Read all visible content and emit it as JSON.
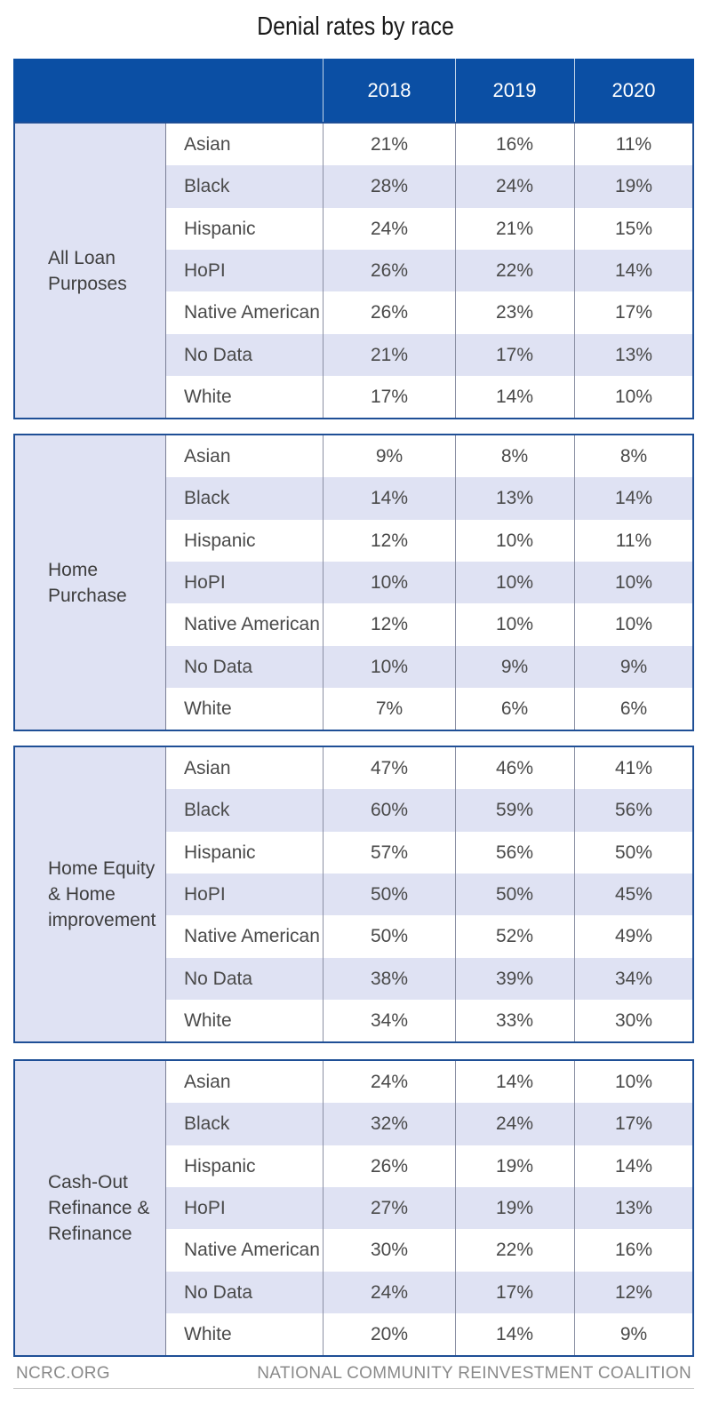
{
  "title": "Denial rates by race",
  "footer": {
    "left": "NCRC.ORG",
    "right": "NATIONAL COMMUNITY REINVESTMENT COALITION"
  },
  "colors": {
    "header": "#0b4fa4",
    "border": "#1f4f96",
    "band": "#dfe2f3"
  },
  "chart_data": {
    "type": "table",
    "title": "Denial rates by race",
    "columns": [
      "2018",
      "2019",
      "2020"
    ],
    "groups": [
      {
        "label": "All  Loan\nPurposes",
        "rows": [
          {
            "race": "Asian",
            "values": [
              "21%",
              "16%",
              "11%"
            ]
          },
          {
            "race": "Black",
            "values": [
              "28%",
              "24%",
              "19%"
            ]
          },
          {
            "race": "Hispanic",
            "values": [
              "24%",
              "21%",
              "15%"
            ]
          },
          {
            "race": "HoPI",
            "values": [
              "26%",
              "22%",
              "14%"
            ]
          },
          {
            "race": "Native American",
            "values": [
              "26%",
              "23%",
              "17%"
            ]
          },
          {
            "race": "No Data",
            "values": [
              "21%",
              "17%",
              "13%"
            ]
          },
          {
            "race": "White",
            "values": [
              "17%",
              "14%",
              "10%"
            ]
          }
        ]
      },
      {
        "label": "Home\nPurchase",
        "rows": [
          {
            "race": "Asian",
            "values": [
              "9%",
              "8%",
              "8%"
            ]
          },
          {
            "race": "Black",
            "values": [
              "14%",
              "13%",
              "14%"
            ]
          },
          {
            "race": "Hispanic",
            "values": [
              "12%",
              "10%",
              "11%"
            ]
          },
          {
            "race": "HoPI",
            "values": [
              "10%",
              "10%",
              "10%"
            ]
          },
          {
            "race": "Native American",
            "values": [
              "12%",
              "10%",
              "10%"
            ]
          },
          {
            "race": "No Data",
            "values": [
              "10%",
              "9%",
              "9%"
            ]
          },
          {
            "race": "White",
            "values": [
              "7%",
              "6%",
              "6%"
            ]
          }
        ]
      },
      {
        "label": "Home Equity\n& Home\nimprovement",
        "rows": [
          {
            "race": "Asian",
            "values": [
              "47%",
              "46%",
              "41%"
            ]
          },
          {
            "race": "Black",
            "values": [
              "60%",
              "59%",
              "56%"
            ]
          },
          {
            "race": "Hispanic",
            "values": [
              "57%",
              "56%",
              "50%"
            ]
          },
          {
            "race": "HoPI",
            "values": [
              "50%",
              "50%",
              "45%"
            ]
          },
          {
            "race": "Native American",
            "values": [
              "50%",
              "52%",
              "49%"
            ]
          },
          {
            "race": "No Data",
            "values": [
              "38%",
              "39%",
              "34%"
            ]
          },
          {
            "race": "White",
            "values": [
              "34%",
              "33%",
              "30%"
            ]
          }
        ]
      },
      {
        "label": "Cash-Out\nRefinance &\nRefinance",
        "rows": [
          {
            "race": "Asian",
            "values": [
              "24%",
              "14%",
              "10%"
            ]
          },
          {
            "race": "Black",
            "values": [
              "32%",
              "24%",
              "17%"
            ]
          },
          {
            "race": "Hispanic",
            "values": [
              "26%",
              "19%",
              "14%"
            ]
          },
          {
            "race": "HoPI",
            "values": [
              "27%",
              "19%",
              "13%"
            ]
          },
          {
            "race": "Native American",
            "values": [
              "30%",
              "22%",
              "16%"
            ]
          },
          {
            "race": "No Data",
            "values": [
              "24%",
              "17%",
              "12%"
            ]
          },
          {
            "race": "White",
            "values": [
              "20%",
              "14%",
              "9%"
            ]
          }
        ]
      }
    ]
  }
}
